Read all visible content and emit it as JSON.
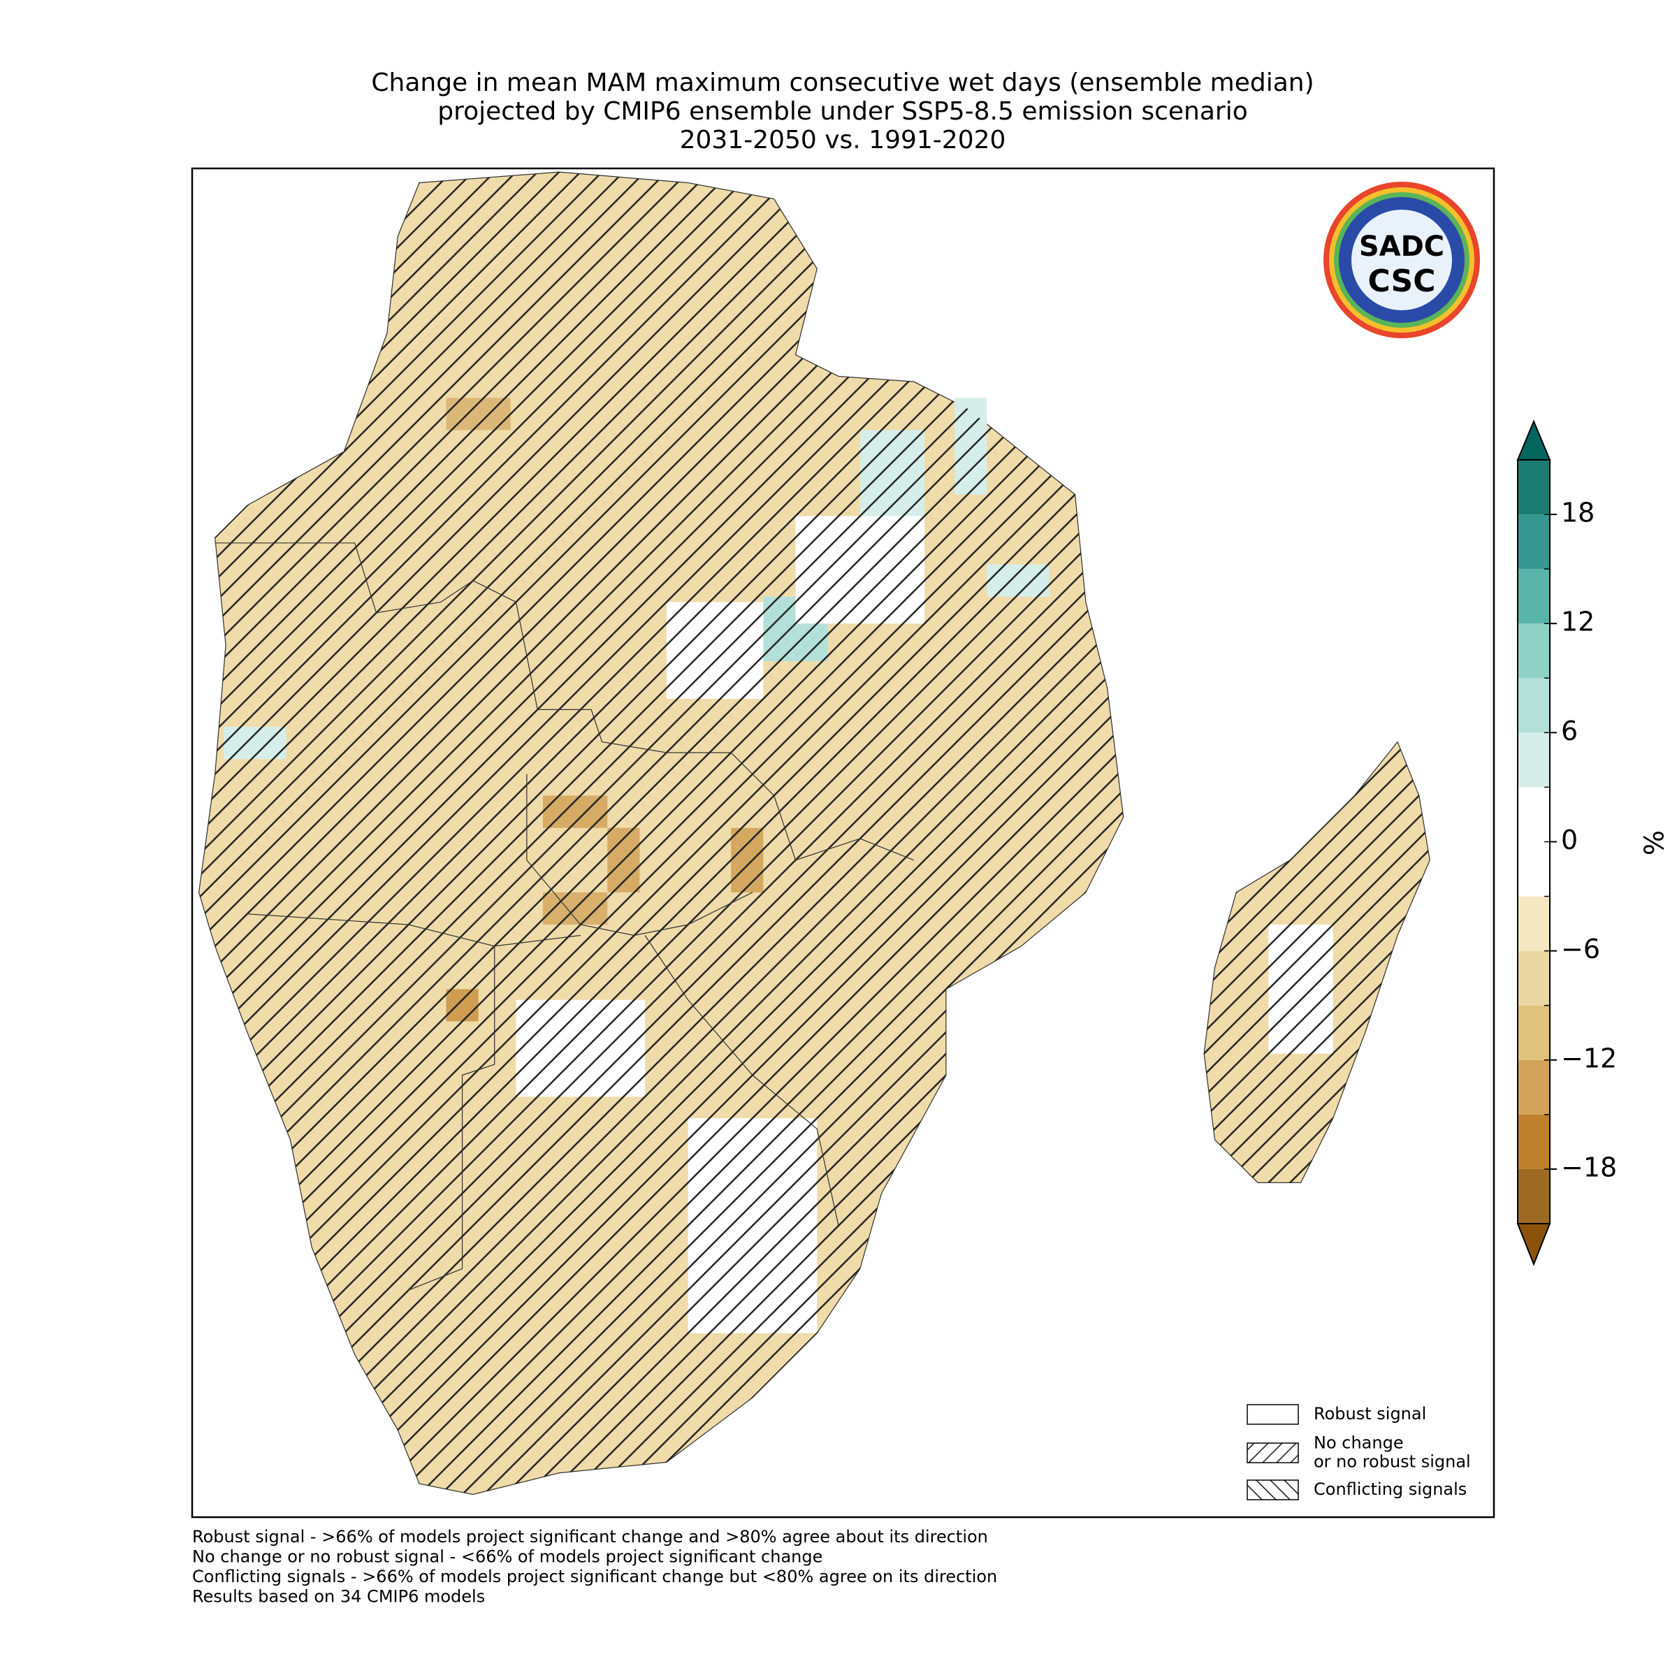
{
  "header": {
    "title": [
      "Change in mean MAM maximum consecutive wet days (ensemble median)",
      "projected by CMIP6 ensemble under SSP5-8.5 emission scenario",
      "2031-2050 vs. 1991-2020"
    ]
  },
  "logo": {
    "line1": "SADC",
    "line2": "CSC"
  },
  "colorbar": {
    "label": "%",
    "levels": [
      -21,
      -18,
      -15,
      -12,
      -9,
      -6,
      -3,
      0,
      3,
      6,
      9,
      12,
      15,
      18,
      21
    ],
    "colors": [
      "#9c6a22",
      "#bf812d",
      "#d2a35a",
      "#dfc27d",
      "#ebd7a4",
      "#f6e8c3",
      "#ffffff",
      "#ffffff",
      "#d6eeea",
      "#b3e1da",
      "#8fd1c5",
      "#5ab4a9",
      "#35978f",
      "#1d7d72"
    ],
    "extend_colors": [
      "#8c510a",
      "#01665e"
    ],
    "ticks": [
      -18,
      -12,
      -6,
      0,
      6,
      12,
      18
    ]
  },
  "legend": [
    {
      "label": [
        "Robust signal"
      ],
      "style": "empty"
    },
    {
      "label": [
        "No change",
        "or no robust signal"
      ],
      "style": "hatch"
    },
    {
      "label": [
        "Conflicting signals"
      ],
      "style": "backhatch"
    }
  ],
  "footnotes": [
    "Robust signal - >66% of models project significant change and >80% agree about its direction",
    "No change or no robust signal - <66% of models project significant change",
    "Conflicting signals - >66% of models project significant change but <80% agree on its direction",
    "Results based on 34 CMIP6 models"
  ]
}
